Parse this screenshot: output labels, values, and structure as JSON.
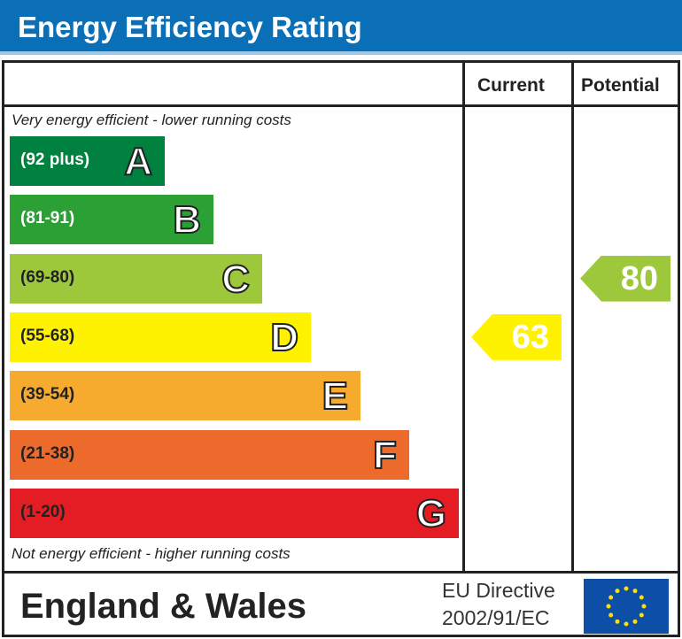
{
  "title": "Energy Efficiency Rating",
  "columns": {
    "current": "Current",
    "potential": "Potential"
  },
  "notes": {
    "top": "Very energy efficient - lower running costs",
    "bottom": "Not energy efficient - higher running costs"
  },
  "footer": {
    "region": "England & Wales",
    "directive_line1": "EU Directive",
    "directive_line2": "2002/91/EC",
    "flag_icon": "eu-flag-icon"
  },
  "chart_data": {
    "type": "bar",
    "bands": [
      {
        "letter": "A",
        "range": "(92 plus)",
        "min": 92,
        "max": 100,
        "color": "#008140",
        "text_color": "#ffffff"
      },
      {
        "letter": "B",
        "range": "(81-91)",
        "min": 81,
        "max": 91,
        "color": "#2ba035",
        "text_color": "#ffffff"
      },
      {
        "letter": "C",
        "range": "(69-80)",
        "min": 69,
        "max": 80,
        "color": "#9dc83c",
        "text_color": "#222222"
      },
      {
        "letter": "D",
        "range": "(55-68)",
        "min": 55,
        "max": 68,
        "color": "#fff200",
        "text_color": "#222222"
      },
      {
        "letter": "E",
        "range": "(39-54)",
        "min": 39,
        "max": 54,
        "color": "#f6ab2f",
        "text_color": "#222222"
      },
      {
        "letter": "F",
        "range": "(21-38)",
        "min": 21,
        "max": 38,
        "color": "#ec6a2c",
        "text_color": "#222222"
      },
      {
        "letter": "G",
        "range": "(1-20)",
        "min": 1,
        "max": 20,
        "color": "#e31d23",
        "text_color": "#222222"
      }
    ],
    "current": {
      "value": 63,
      "band": "D"
    },
    "potential": {
      "value": 80,
      "band": "C"
    }
  }
}
